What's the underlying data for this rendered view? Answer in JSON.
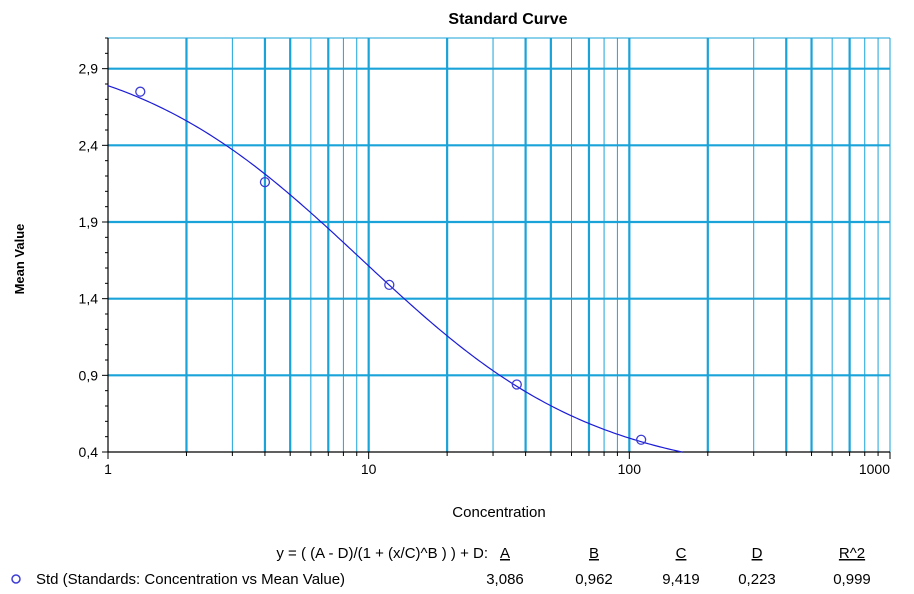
{
  "chart_data": {
    "type": "scatter",
    "title": "Standard Curve",
    "xlabel": "Concentration",
    "ylabel": "Mean Value",
    "x_scale": "log",
    "xlim": [
      1,
      1000
    ],
    "ylim": [
      0.4,
      3.1
    ],
    "x_tick_labels": [
      "1",
      "10",
      "100",
      "1000"
    ],
    "y_ticks": [
      0.4,
      0.9,
      1.4,
      1.9,
      2.4,
      2.9
    ],
    "y_tick_labels": [
      "0,4",
      "0,9",
      "1,4",
      "1,9",
      "2,4",
      "2,9"
    ],
    "grid": true,
    "series": [
      {
        "name": "Std (Standards: Concentration vs Mean Value)",
        "points": [
          {
            "x": 1.33,
            "y": 2.75
          },
          {
            "x": 4.0,
            "y": 2.16
          },
          {
            "x": 12.0,
            "y": 1.49
          },
          {
            "x": 37.0,
            "y": 0.84
          },
          {
            "x": 111.0,
            "y": 0.48
          }
        ]
      }
    ],
    "fit": {
      "model": "4PL",
      "A": 3.086,
      "B": 0.962,
      "C": 9.419,
      "D": 0.223,
      "x_range": [
        1,
        160
      ]
    },
    "legend": {
      "equation": "y = ( (A - D)/(1 + (x/C)^B ) ) + D:",
      "headers": [
        "A",
        "B",
        "C",
        "D",
        "R^2"
      ],
      "values": [
        "3,086",
        "0,962",
        "9,419",
        "0,223",
        "0,999"
      ]
    },
    "colors": {
      "grid": "#1aa3d9",
      "curve": "#1c1cd6",
      "marker": "#3d3dd6",
      "axis": "#000000"
    }
  }
}
